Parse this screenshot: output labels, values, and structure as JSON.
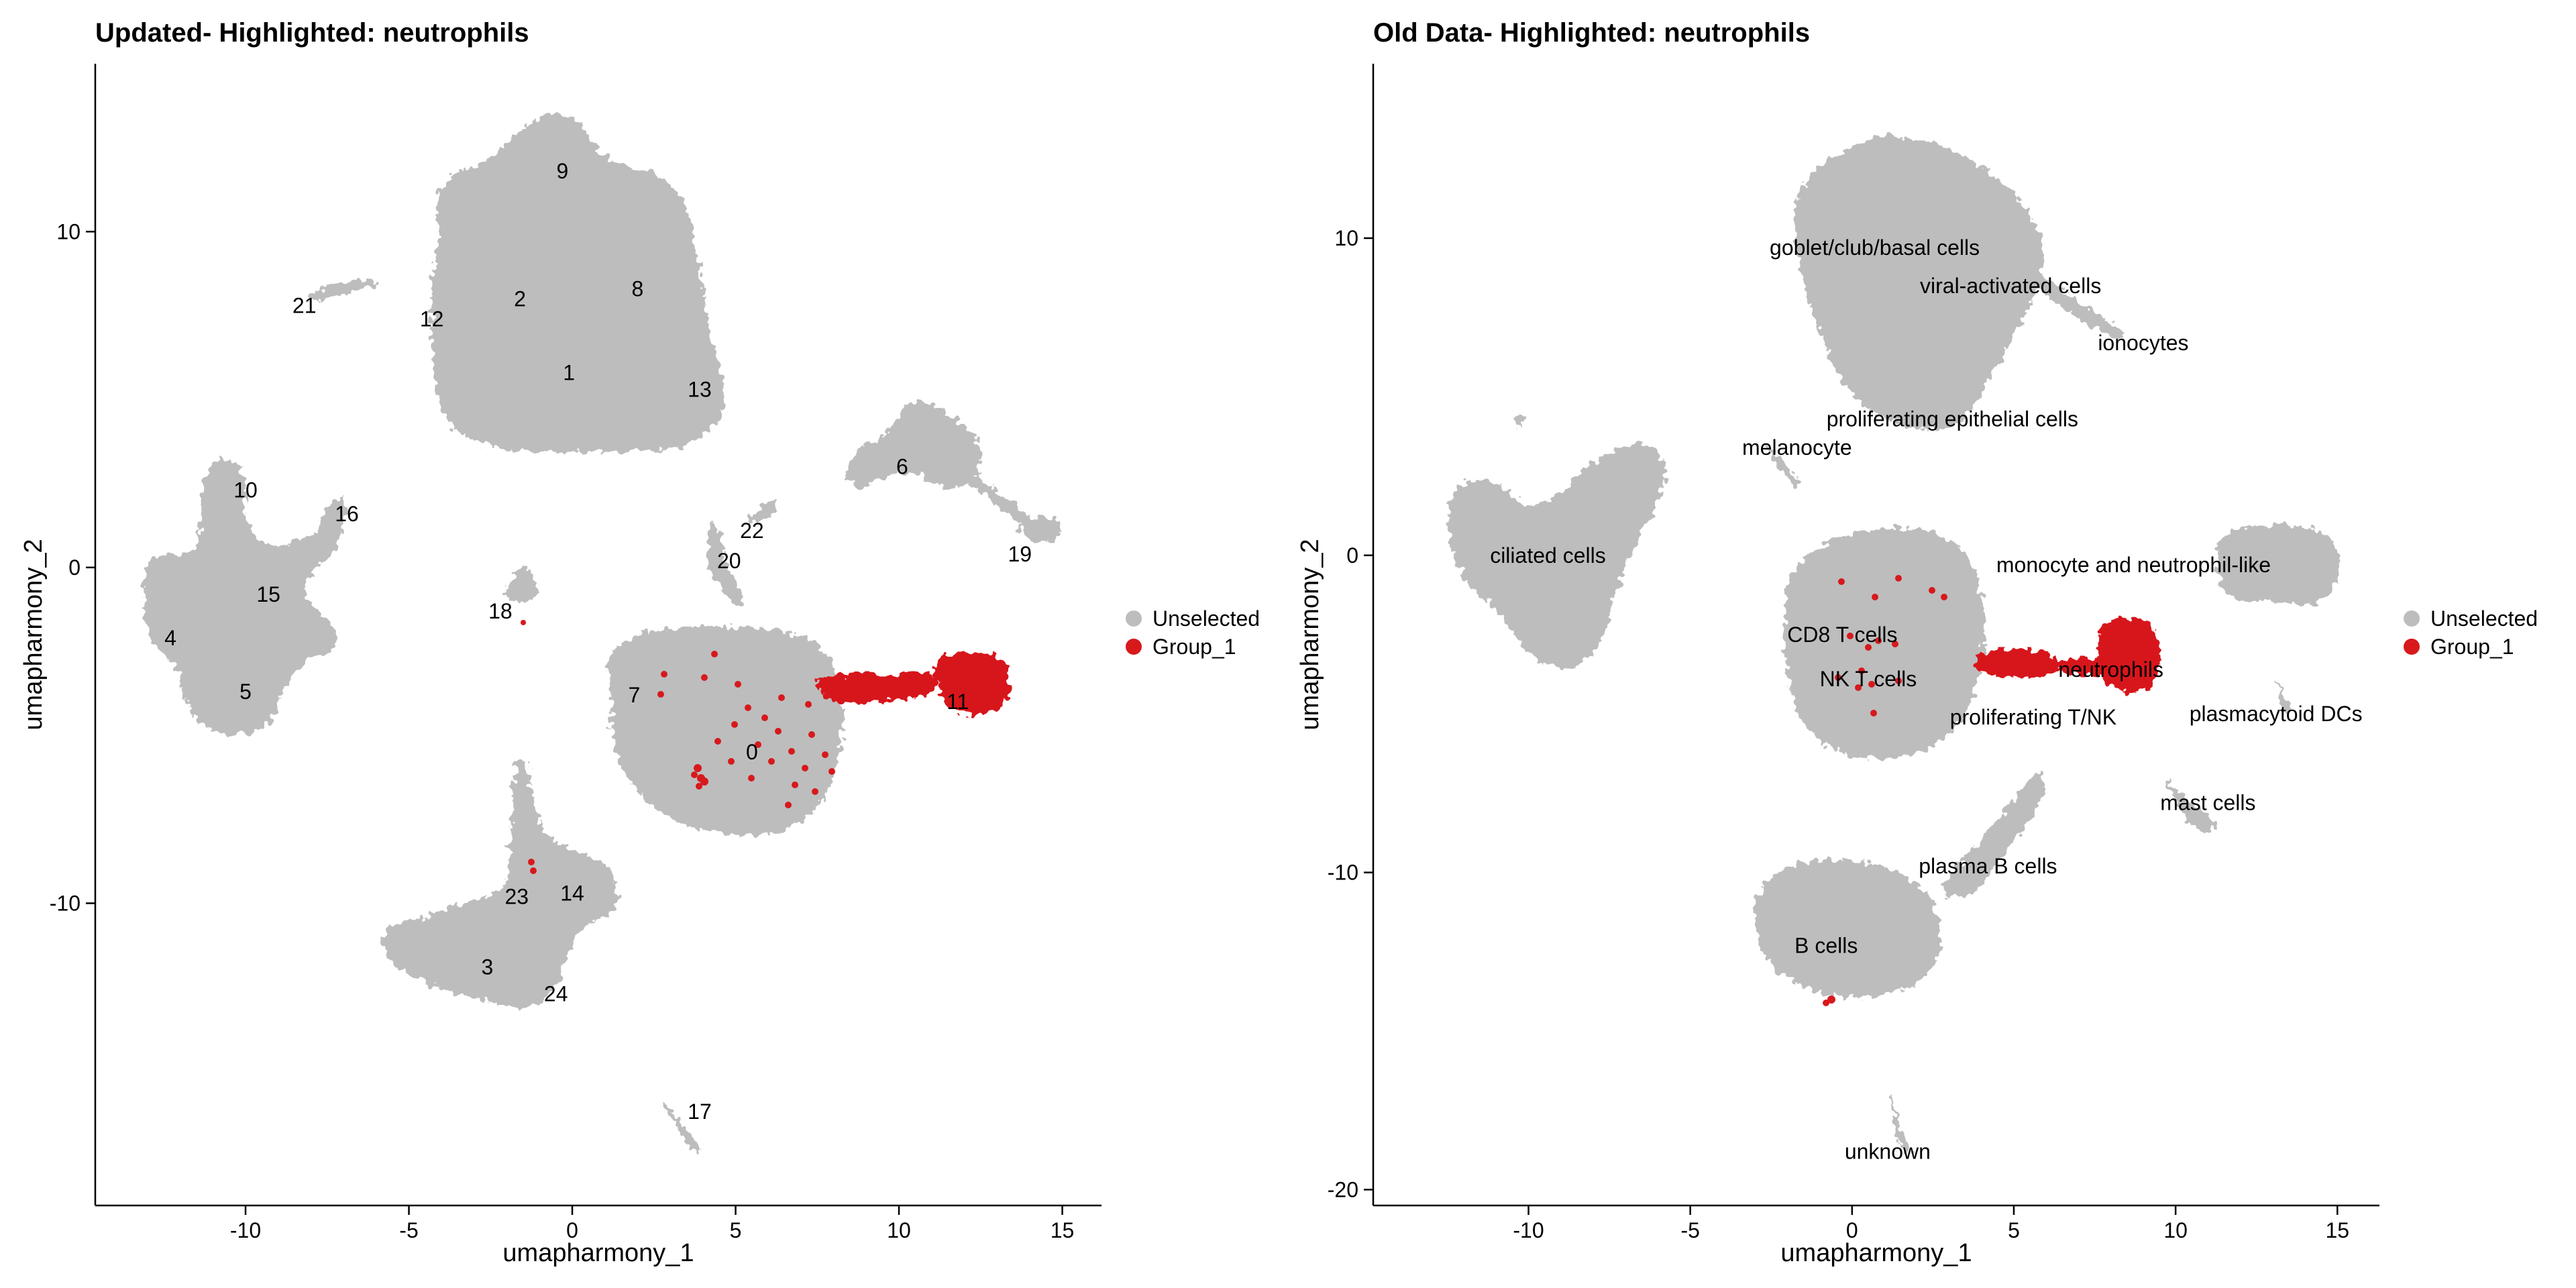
{
  "colors": {
    "unselected": "#bdbdbd",
    "group": "#d7191c",
    "axis": "#000000"
  },
  "chart_data": [
    {
      "type": "scatter",
      "title": "Updated- Highlighted: neutrophils",
      "xlabel": "umapharmony_1",
      "ylabel": "umapharmony_2",
      "xlim": [
        -14.6,
        16.2
      ],
      "ylim": [
        -19,
        15
      ],
      "xticks": [
        -10,
        -5,
        0,
        5,
        10,
        15
      ],
      "yticks": [
        -10,
        0,
        10
      ],
      "legend": {
        "position": "right",
        "entries": [
          {
            "label": "Unselected",
            "color": "#bdbdbd"
          },
          {
            "label": "Group_1",
            "color": "#d7191c"
          }
        ]
      },
      "grid": false,
      "clusters": [
        {
          "label": "0",
          "x": 5.5,
          "y": -5.5
        },
        {
          "label": "1",
          "x": -0.1,
          "y": 5.8
        },
        {
          "label": "2",
          "x": -1.6,
          "y": 8.0
        },
        {
          "label": "3",
          "x": -2.6,
          "y": -11.9
        },
        {
          "label": "4",
          "x": -12.3,
          "y": -2.1
        },
        {
          "label": "5",
          "x": -10.0,
          "y": -3.7
        },
        {
          "label": "6",
          "x": 10.1,
          "y": 3.0
        },
        {
          "label": "7",
          "x": 1.9,
          "y": -3.8
        },
        {
          "label": "8",
          "x": 2.0,
          "y": 8.3
        },
        {
          "label": "9",
          "x": -0.3,
          "y": 11.8
        },
        {
          "label": "10",
          "x": -10.0,
          "y": 2.3
        },
        {
          "label": "11",
          "x": 11.8,
          "y": -4.0
        },
        {
          "label": "12",
          "x": -4.3,
          "y": 7.4
        },
        {
          "label": "13",
          "x": 3.9,
          "y": 5.3
        },
        {
          "label": "14",
          "x": 0.0,
          "y": -9.7
        },
        {
          "label": "15",
          "x": -9.3,
          "y": -0.8
        },
        {
          "label": "16",
          "x": -6.9,
          "y": 1.6
        },
        {
          "label": "17",
          "x": 3.9,
          "y": -16.2
        },
        {
          "label": "18",
          "x": -2.2,
          "y": -1.3
        },
        {
          "label": "19",
          "x": 13.7,
          "y": 0.4
        },
        {
          "label": "20",
          "x": 4.8,
          "y": 0.2
        },
        {
          "label": "21",
          "x": -8.2,
          "y": 7.8
        },
        {
          "label": "22",
          "x": 5.5,
          "y": 1.1
        },
        {
          "label": "23",
          "x": -1.7,
          "y": -9.8
        },
        {
          "label": "24",
          "x": -0.5,
          "y": -12.7
        }
      ]
    },
    {
      "type": "scatter",
      "title": "Old Data- Highlighted: neutrophils",
      "xlabel": "umapharmony_1",
      "ylabel": "umapharmony_2",
      "xlim": [
        -14.8,
        16.3
      ],
      "ylim": [
        -20.5,
        15.5
      ],
      "xticks": [
        -10,
        -5,
        0,
        5,
        10,
        15
      ],
      "yticks": [
        -20,
        -10,
        0,
        10
      ],
      "legend": {
        "position": "right",
        "entries": [
          {
            "label": "Unselected",
            "color": "#bdbdbd"
          },
          {
            "label": "Group_1",
            "color": "#d7191c"
          }
        ]
      },
      "grid": false,
      "clusters": [
        {
          "label": "goblet/club/basal cells",
          "x": 0.7,
          "y": 9.7
        },
        {
          "label": "viral-activated cells",
          "x": 4.9,
          "y": 8.5
        },
        {
          "label": "ionocytes",
          "x": 9.0,
          "y": 6.7
        },
        {
          "label": "proliferating epithelial cells",
          "x": 3.1,
          "y": 4.3
        },
        {
          "label": "melanocyte",
          "x": -1.7,
          "y": 3.4
        },
        {
          "label": "ciliated cells",
          "x": -9.4,
          "y": 0.0
        },
        {
          "label": "monocyte and neutrophil-like",
          "x": 8.7,
          "y": -0.3
        },
        {
          "label": "CD8 T cells",
          "x": -0.3,
          "y": -2.5
        },
        {
          "label": "NK T cells",
          "x": 0.5,
          "y": -3.9
        },
        {
          "label": "neutrophils",
          "x": 8.0,
          "y": -3.6
        },
        {
          "label": "plasmacytoid DCs",
          "x": 13.1,
          "y": -5.0
        },
        {
          "label": "proliferating T/NK",
          "x": 5.6,
          "y": -5.1
        },
        {
          "label": "mast cells",
          "x": 11.0,
          "y": -7.8
        },
        {
          "label": "plasma B cells",
          "x": 4.2,
          "y": -9.8
        },
        {
          "label": "B cells",
          "x": -0.8,
          "y": -12.3
        },
        {
          "label": "unknown",
          "x": 1.1,
          "y": -18.8
        }
      ]
    }
  ]
}
